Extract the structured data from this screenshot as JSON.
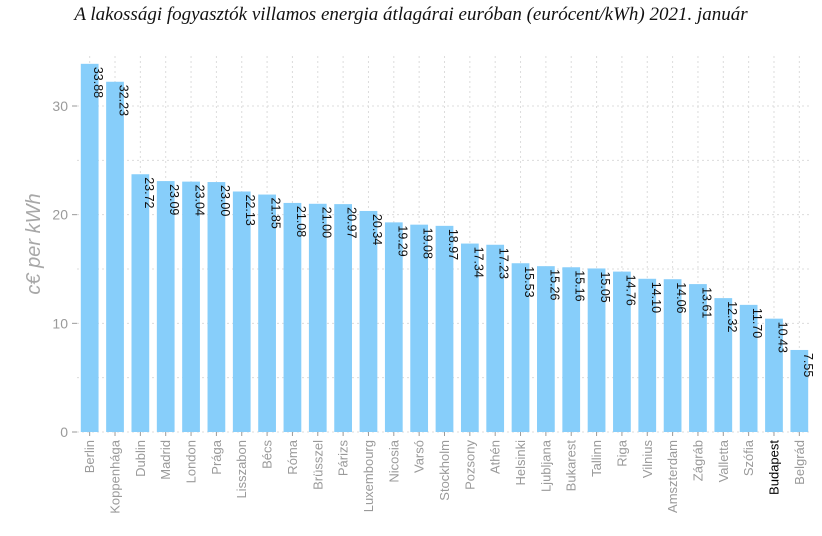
{
  "chart_data": {
    "type": "bar",
    "title": "A lakossági fogyasztók villamos energia átlagárai euróban (eurócent/kWh) 2021. január",
    "ylabel": "c€ per kWh",
    "xlabel": "",
    "ylim": [
      0,
      34
    ],
    "yticks": [
      0,
      10,
      20,
      30
    ],
    "grid": true,
    "bar_color": "#87cefa",
    "highlight_category": "Budapest",
    "highlight_color": "#000000",
    "categories": [
      "Berlin",
      "Koppenhága",
      "Dublin",
      "Madrid",
      "London",
      "Prága",
      "Lisszabon",
      "Bécs",
      "Róma",
      "Brüsszel",
      "Párizs",
      "Luxembourg",
      "Nicosia",
      "Varsó",
      "Stockholm",
      "Pozsony",
      "Athén",
      "Helsinki",
      "Ljubljana",
      "Bukarest",
      "Tallinn",
      "Riga",
      "Vilnius",
      "Amszterdam",
      "Zágráb",
      "Valletta",
      "Szófia",
      "Budapest",
      "Belgrád"
    ],
    "values": [
      33.88,
      32.23,
      23.72,
      23.09,
      23.04,
      23.0,
      22.13,
      21.85,
      21.08,
      21.0,
      20.97,
      20.34,
      19.29,
      19.08,
      18.97,
      17.34,
      17.23,
      15.53,
      15.26,
      15.16,
      15.05,
      14.76,
      14.1,
      14.06,
      13.61,
      12.32,
      11.7,
      10.43,
      7.55
    ],
    "value_labels": [
      "33.88",
      "32.23",
      "23.72",
      "23.09",
      "23.04",
      "23.00",
      "22.13",
      "21.85",
      "21.08",
      "21.00",
      "20.97",
      "20.34",
      "19.29",
      "19.08",
      "18.97",
      "17.34",
      "17.23",
      "15.53",
      "15.26",
      "15.16",
      "15.05",
      "14.76",
      "14.10",
      "14.06",
      "13.61",
      "12.32",
      "11.70",
      "10.43",
      "7.55"
    ]
  }
}
